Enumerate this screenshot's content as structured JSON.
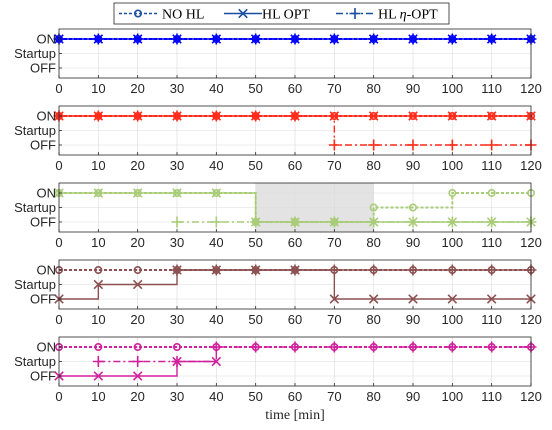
{
  "chart_data": {
    "type": "line",
    "xlabel": "time [min]",
    "xlim": [
      0,
      120
    ],
    "x_ticks": [
      0,
      10,
      20,
      30,
      40,
      50,
      60,
      70,
      80,
      90,
      100,
      110,
      120
    ],
    "y_ticks": [
      "OFF",
      "Startup",
      "ON"
    ],
    "grid": true,
    "legend_position": "top-center",
    "legend": [
      {
        "label": "NO HL",
        "series_index": 0
      },
      {
        "label": "HL OPT",
        "series_index": 1
      },
      {
        "label": "HL η-OPT",
        "series_index": 2
      }
    ],
    "panels": [
      {
        "color": "#0000ff",
        "series": [
          {
            "x": [
              0,
              10,
              20,
              30,
              40,
              50,
              60,
              70,
              80,
              90,
              100,
              110,
              120
            ],
            "y": [
              2,
              2,
              2,
              2,
              2,
              2,
              2,
              2,
              2,
              2,
              2,
              2,
              2
            ]
          },
          {
            "x": [
              0,
              10,
              20,
              30,
              40,
              50,
              60,
              70,
              80,
              90,
              100,
              110,
              120
            ],
            "y": [
              2,
              2,
              2,
              2,
              2,
              2,
              2,
              2,
              2,
              2,
              2,
              2,
              2
            ]
          },
          {
            "x": [
              0,
              10,
              20,
              30,
              40,
              50,
              60,
              70,
              80,
              90,
              100,
              110,
              120
            ],
            "y": [
              2,
              2,
              2,
              2,
              2,
              2,
              2,
              2,
              2,
              2,
              2,
              2,
              2
            ]
          }
        ]
      },
      {
        "color": "#ff2a1a",
        "series": [
          {
            "x": [
              0,
              10,
              20,
              30,
              40,
              50,
              60,
              70,
              80,
              90,
              100,
              110,
              120
            ],
            "y": [
              2,
              2,
              2,
              2,
              2,
              2,
              2,
              2,
              2,
              2,
              2,
              2,
              2
            ]
          },
          {
            "x": [
              0,
              10,
              20,
              30,
              40,
              50,
              60,
              70,
              80,
              90,
              100,
              110,
              120
            ],
            "y": [
              2,
              2,
              2,
              2,
              2,
              2,
              2,
              2,
              2,
              2,
              2,
              2,
              2
            ]
          },
          {
            "x": [
              0,
              10,
              20,
              30,
              40,
              50,
              60,
              70,
              80,
              90,
              100,
              110,
              120
            ],
            "y": [
              2,
              2,
              2,
              2,
              2,
              2,
              2,
              0,
              0,
              0,
              0,
              0,
              0
            ]
          }
        ]
      },
      {
        "color": "#a8cc78",
        "shade": [
          50,
          80
        ],
        "series": [
          {
            "x": [
              0,
              10,
              20,
              30,
              40,
              50,
              60,
              70,
              80,
              90,
              100,
              110,
              120
            ],
            "y": [
              2,
              2,
              2,
              2,
              2,
              0,
              0,
              0,
              1,
              1,
              2,
              2,
              2
            ]
          },
          {
            "x": [
              0,
              10,
              20,
              30,
              40,
              50,
              60,
              70,
              80,
              90,
              100,
              110,
              120
            ],
            "y": [
              2,
              2,
              2,
              2,
              2,
              0,
              0,
              0,
              0,
              0,
              0,
              0,
              0
            ]
          },
          {
            "x": [
              30,
              40,
              50,
              60,
              70,
              80,
              90,
              100,
              110,
              120
            ],
            "y": [
              0,
              0,
              0,
              0,
              0,
              0,
              0,
              0,
              0,
              0
            ]
          }
        ]
      },
      {
        "color": "#8c5050",
        "series": [
          {
            "x": [
              0,
              10,
              20,
              30,
              40,
              50,
              60,
              70,
              80,
              90,
              100,
              110,
              120
            ],
            "y": [
              2,
              2,
              2,
              2,
              2,
              2,
              2,
              2,
              2,
              2,
              2,
              2,
              2
            ]
          },
          {
            "x": [
              0,
              10,
              20,
              30,
              40,
              50,
              60,
              70,
              80,
              90,
              100,
              110,
              120
            ],
            "y": [
              0,
              1,
              1,
              2,
              2,
              2,
              2,
              0,
              0,
              0,
              0,
              0,
              0
            ]
          },
          {
            "x": [
              30,
              40,
              50,
              60,
              70,
              80,
              90,
              100,
              110,
              120
            ],
            "y": [
              2,
              2,
              2,
              2,
              2,
              2,
              2,
              2,
              2,
              2
            ]
          }
        ]
      },
      {
        "color": "#d0209c",
        "series": [
          {
            "x": [
              0,
              10,
              20,
              30,
              40,
              50,
              60,
              70,
              80,
              90,
              100,
              110,
              120
            ],
            "y": [
              2,
              2,
              2,
              2,
              2,
              2,
              2,
              2,
              2,
              2,
              2,
              2,
              2
            ]
          },
          {
            "x": [
              0,
              10,
              20,
              30,
              40
            ],
            "y": [
              0,
              0,
              0,
              1,
              1
            ]
          },
          {
            "x": [
              10,
              20,
              30,
              40,
              50,
              60,
              70,
              80,
              90,
              100,
              110,
              120
            ],
            "y": [
              1,
              1,
              1,
              2,
              2,
              2,
              2,
              2,
              2,
              2,
              2,
              2
            ]
          }
        ]
      }
    ]
  }
}
